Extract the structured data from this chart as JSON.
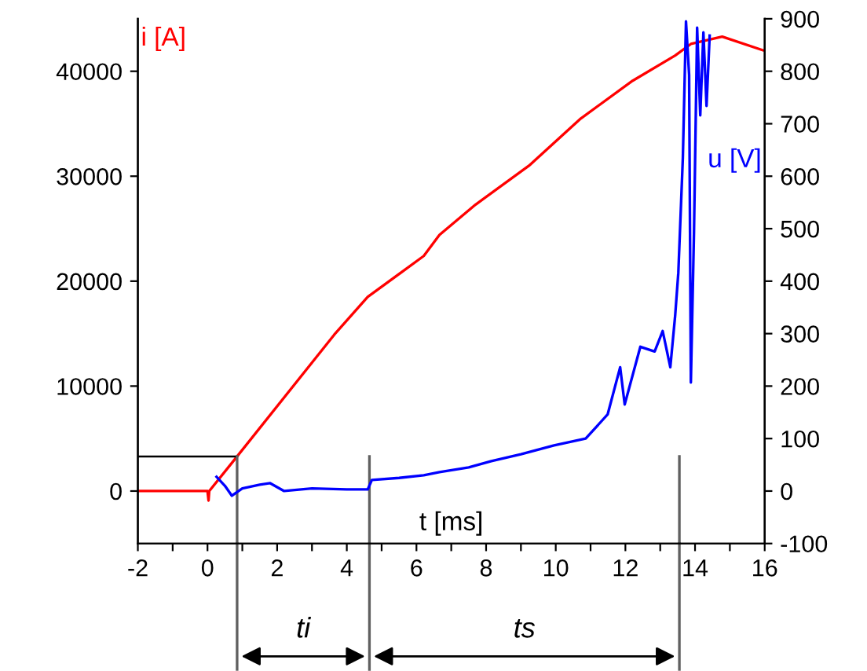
{
  "chart_data": {
    "type": "line",
    "xlabel": "t [ms]",
    "xlim": [
      -2,
      16
    ],
    "xticks": [
      -2,
      {
        "value": -1,
        "label": null
      },
      0,
      {
        "value": 1,
        "label": null
      },
      2,
      {
        "value": 3,
        "label": null
      },
      4,
      {
        "value": 5,
        "label": null
      },
      6,
      {
        "value": 7,
        "label": null
      },
      8,
      {
        "value": 9,
        "label": null
      },
      10,
      {
        "value": 11,
        "label": null
      },
      12,
      {
        "value": 13,
        "label": null
      },
      14,
      {
        "value": 15,
        "label": null
      },
      16
    ],
    "ylim": [
      -5000,
      45000
    ],
    "yticks": [
      0,
      10000,
      20000,
      30000,
      40000
    ],
    "y2lim": [
      -100,
      900
    ],
    "y2ticks": [
      -100,
      0,
      100,
      200,
      300,
      400,
      500,
      600,
      700,
      800,
      900
    ],
    "grid": false,
    "legend": false,
    "series": [
      {
        "name": "i [A]",
        "color": "#ff0000",
        "x": [
          -2,
          0,
          0.03,
          0.05,
          0.85,
          3.64,
          4.6,
          6.21,
          6.66,
          7.7,
          9.23,
          10.72,
          12.21,
          13.43,
          13.88,
          14.78,
          15.95
        ],
        "values": [
          0,
          0,
          -900,
          0,
          3300,
          14900,
          18500,
          22400,
          24400,
          27300,
          31000,
          35500,
          39100,
          41500,
          42600,
          43300,
          42000
        ]
      },
      {
        "name": "u [V]",
        "color": "#0000ff",
        "axis": "y2",
        "x": [
          0.26,
          0.5,
          0.7,
          1.0,
          1.5,
          1.8,
          2.2,
          3.0,
          4.0,
          4.6,
          4.72,
          5.5,
          6.21,
          6.66,
          7.5,
          8.15,
          9.0,
          9.95,
          10.86,
          11.49,
          11.85,
          11.98,
          12.43,
          12.84,
          13.07,
          13.29,
          13.43,
          13.52,
          13.65,
          13.74,
          13.83,
          13.88,
          13.97,
          14.06,
          14.15,
          14.24,
          14.33,
          14.42
        ],
        "values": [
          27,
          10,
          -9,
          5,
          12,
          15,
          0,
          5,
          3,
          3,
          21,
          25,
          30,
          36,
          45,
          57,
          70,
          87,
          100,
          146,
          236,
          165,
          275,
          266,
          305,
          236,
          335,
          416,
          635,
          895,
          793,
          207,
          494,
          883,
          716,
          874,
          734,
          868
        ]
      }
    ],
    "ref_lines": [
      {
        "axis": "y",
        "value": 3300,
        "color": "#000000"
      },
      {
        "axis": "x",
        "value": 0.85,
        "color": "#606060"
      },
      {
        "axis": "x",
        "value": 4.65,
        "color": "#606060"
      },
      {
        "axis": "x",
        "value": 13.55,
        "color": "#606060"
      }
    ],
    "annotations": [
      "ti",
      "ts"
    ]
  }
}
